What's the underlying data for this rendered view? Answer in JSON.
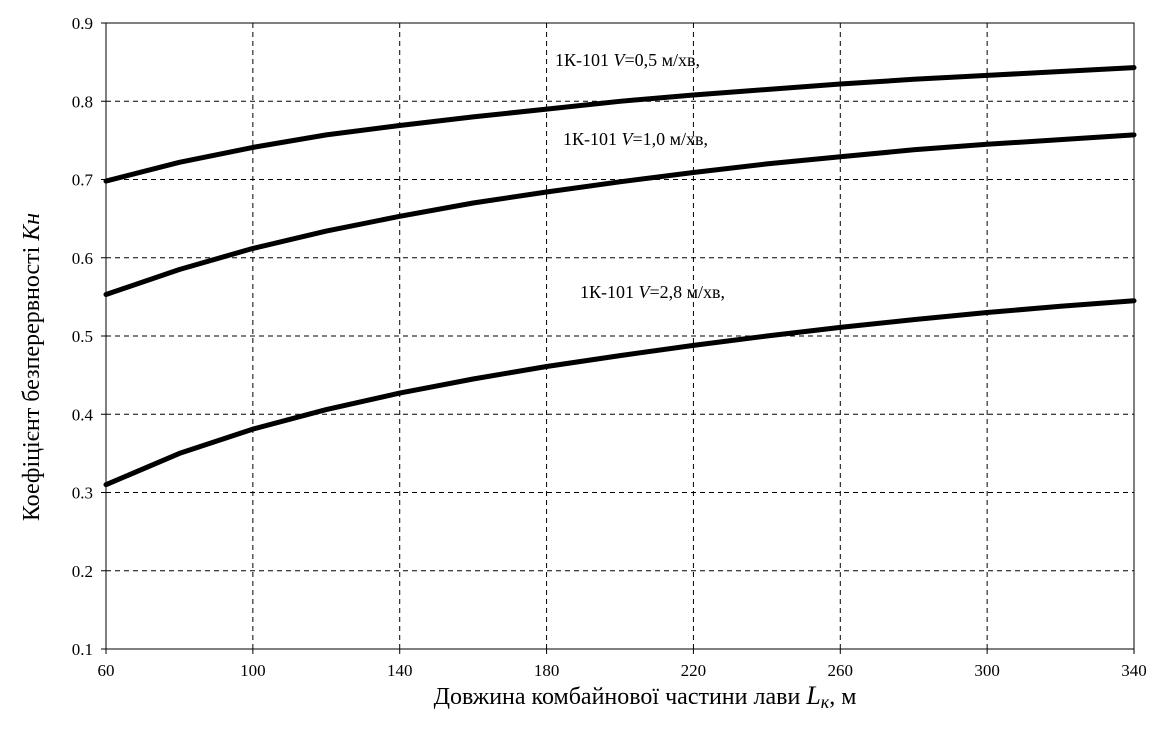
{
  "chart_data": {
    "type": "line",
    "title": "",
    "xlabel": {
      "text": "Довжина комбайнової частини лави ",
      "symbol": "L",
      "subscript": "к",
      "unit": ",  м"
    },
    "ylabel": {
      "text": "Коефіцієнт безперервності ",
      "symbol": "Кн"
    },
    "xlim": [
      60,
      340
    ],
    "ylim": [
      0.1,
      0.9
    ],
    "x_ticks": [
      "60",
      "100",
      "140",
      "180",
      "220",
      "260",
      "300",
      "340"
    ],
    "y_ticks": [
      "0.1",
      "0.2",
      "0.3",
      "0.4",
      "0.5",
      "0.6",
      "0.7",
      "0.8",
      "0.9"
    ],
    "grid": true,
    "grid_style": "dashed",
    "line_color": "#000000",
    "series": [
      {
        "label": {
          "prefix": "1К-101  ",
          "var": "V",
          "suffix": "=0,5 м/хв,"
        },
        "x": [
          60,
          80,
          100,
          120,
          140,
          160,
          180,
          200,
          220,
          240,
          260,
          280,
          300,
          320,
          340
        ],
        "values": [
          0.698,
          0.722,
          0.741,
          0.757,
          0.769,
          0.78,
          0.79,
          0.8,
          0.808,
          0.815,
          0.822,
          0.828,
          0.833,
          0.838,
          0.843
        ]
      },
      {
        "label": {
          "prefix": "1К-101   ",
          "var": "V",
          "suffix": "=1,0 м/хв,"
        },
        "x": [
          60,
          80,
          100,
          120,
          140,
          160,
          180,
          200,
          220,
          240,
          260,
          280,
          300,
          320,
          340
        ],
        "values": [
          0.553,
          0.585,
          0.612,
          0.634,
          0.653,
          0.67,
          0.684,
          0.697,
          0.709,
          0.72,
          0.729,
          0.738,
          0.745,
          0.751,
          0.757
        ]
      },
      {
        "label": {
          "prefix": "1К-101   ",
          "var": "V",
          "suffix": "=2,8 м/хв,"
        },
        "x": [
          60,
          80,
          100,
          120,
          140,
          160,
          180,
          200,
          220,
          240,
          260,
          280,
          300,
          320,
          340
        ],
        "values": [
          0.31,
          0.35,
          0.381,
          0.406,
          0.427,
          0.445,
          0.461,
          0.475,
          0.488,
          0.5,
          0.511,
          0.521,
          0.53,
          0.538,
          0.545
        ]
      }
    ]
  }
}
